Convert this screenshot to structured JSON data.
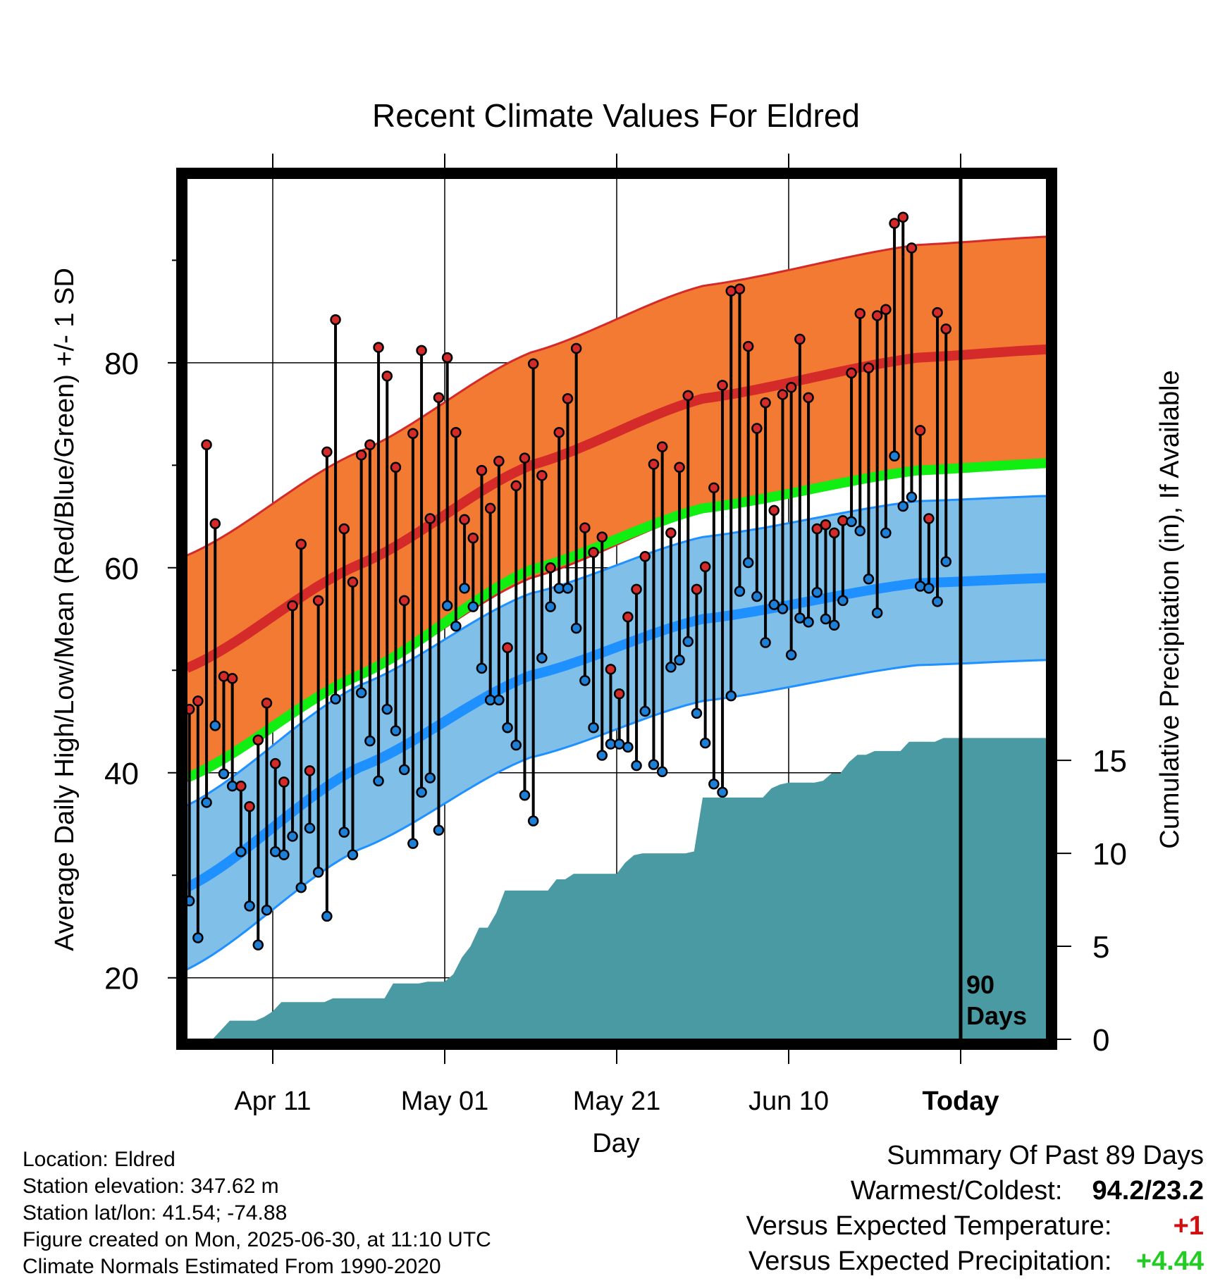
{
  "chart_data": {
    "type": "line",
    "title": "Recent Climate Values For Eldred",
    "xlabel": "Day",
    "ylabel_left": "Average Daily High/Low/Mean (Red/Blue/Green) +/- 1 SD",
    "ylabel_right": "Cumulative Precipitation (in), If Available",
    "x_tick_labels": [
      "Apr 11",
      "May 01",
      "May 21",
      "Jun 10",
      "Today"
    ],
    "x_tick_days": [
      10,
      30,
      50,
      70,
      90
    ],
    "xlim": [
      0,
      100
    ],
    "ylim_left": [
      14,
      98
    ],
    "y_ticks_left": [
      20,
      40,
      60,
      80
    ],
    "y_minor_left": [
      30,
      50,
      70,
      90
    ],
    "ylim_right": [
      0,
      46.3
    ],
    "y_ticks_right": [
      0,
      5,
      10,
      15
    ],
    "today_day": 90,
    "today_label": [
      "90",
      "Days"
    ],
    "normals": {
      "high_mean": [
        50.2,
        60.3,
        70.0,
        76.5,
        80.5,
        81.3
      ],
      "high_sd": 11.0,
      "low_mean": [
        28.8,
        40.5,
        49.5,
        55.0,
        58.5,
        59.0
      ],
      "low_sd": 8.0,
      "mean": [
        39.5,
        49.5,
        59.8,
        65.8,
        69.5,
        70.2
      ],
      "anchor_days": [
        0,
        20,
        40,
        60,
        85,
        100
      ]
    },
    "series": [
      {
        "name": "High",
        "values": [
          46.2,
          47.0,
          72.0,
          64.3,
          49.4,
          49.2,
          38.7,
          36.7,
          43.2,
          46.8,
          40.9,
          39.1,
          56.3,
          62.3,
          40.2,
          56.8,
          71.3,
          84.2,
          63.8,
          58.6,
          71.0,
          72.0,
          81.5,
          78.7,
          69.8,
          56.8,
          73.1,
          81.2,
          64.8,
          76.6,
          80.5,
          73.2,
          64.7,
          62.9,
          69.5,
          65.8,
          70.4,
          52.2,
          68.0,
          70.7,
          79.9,
          69.0,
          60.0,
          73.2,
          76.5,
          81.4,
          63.9,
          61.5,
          63.0,
          50.1,
          47.7,
          55.2,
          57.9,
          61.1,
          70.1,
          71.8,
          63.4,
          69.8,
          76.8,
          57.9,
          60.1,
          67.8,
          77.8,
          87.0,
          87.2,
          81.6,
          73.6,
          76.1,
          65.6,
          76.9,
          77.6,
          82.3,
          76.6,
          63.8,
          64.2,
          63.4,
          64.6,
          79.0,
          84.8,
          79.5,
          84.6,
          85.2,
          93.6,
          94.2,
          91.2,
          73.4,
          64.8,
          84.9,
          83.3
        ]
      },
      {
        "name": "Low",
        "values": [
          27.5,
          23.9,
          37.1,
          44.6,
          39.9,
          38.7,
          32.3,
          27.0,
          23.2,
          26.6,
          32.3,
          32.0,
          33.8,
          28.8,
          34.6,
          30.3,
          26.0,
          47.2,
          34.2,
          32.0,
          47.8,
          43.1,
          39.2,
          46.2,
          44.1,
          40.3,
          33.1,
          38.1,
          39.5,
          34.4,
          56.3,
          54.3,
          58.0,
          56.2,
          50.2,
          47.1,
          47.1,
          44.4,
          42.7,
          37.8,
          35.3,
          51.2,
          56.2,
          58.0,
          58.0,
          54.1,
          49.0,
          44.4,
          41.7,
          42.8,
          42.8,
          42.5,
          40.7,
          46.0,
          40.8,
          40.1,
          50.3,
          51.0,
          52.8,
          45.8,
          42.9,
          38.9,
          38.1,
          47.5,
          57.7,
          60.5,
          57.2,
          52.7,
          56.4,
          56.0,
          51.5,
          55.1,
          54.7,
          57.6,
          55.0,
          54.4,
          56.8,
          64.5,
          63.6,
          58.9,
          55.6,
          63.4,
          70.9,
          66.0,
          66.9,
          58.2,
          58.0,
          56.7,
          60.6
        ]
      },
      {
        "name": "Cumulative Precipitation",
        "values": [
          0.0,
          0.0,
          0.0,
          0.0,
          0.5,
          1.0,
          1.0,
          1.0,
          1.0,
          1.2,
          1.5,
          2.0,
          2.0,
          2.0,
          2.0,
          2.0,
          2.0,
          2.2,
          2.2,
          2.2,
          2.2,
          2.2,
          2.2,
          2.2,
          3.0,
          3.0,
          3.0,
          3.0,
          3.1,
          3.1,
          3.1,
          3.5,
          4.4,
          5.0,
          6.0,
          6.0,
          6.8,
          8.0,
          8.0,
          8.0,
          8.0,
          8.0,
          8.0,
          8.6,
          8.6,
          8.9,
          8.9,
          8.9,
          8.9,
          8.9,
          8.9,
          9.5,
          9.9,
          10.0,
          10.0,
          10.0,
          10.0,
          10.0,
          10.0,
          10.1,
          13.0,
          13.0,
          13.0,
          13.0,
          13.0,
          13.0,
          13.0,
          13.0,
          13.5,
          13.7,
          13.8,
          13.8,
          13.8,
          13.8,
          13.9,
          14.3,
          14.3,
          14.9,
          15.3,
          15.3,
          15.5,
          15.5,
          15.5,
          15.5,
          16.0,
          16.0,
          16.0,
          16.0,
          16.2,
          16.2,
          16.2,
          16.2,
          16.2,
          16.2,
          16.2,
          16.2,
          16.2,
          16.2,
          16.2,
          16.2,
          16.2
        ]
      }
    ]
  },
  "info": {
    "location": "Location: Eldred",
    "elevation": "Station elevation: 347.62 m",
    "latlon": "Station lat/lon: 41.54; -74.88",
    "created": "Figure created on Mon, 2025-06-30, at 11:10 UTC",
    "normals": "Climate Normals Estimated From 1990-2020"
  },
  "summary": {
    "heading": "Summary Of Past 89 Days",
    "warm_cold_label": "Warmest/Coldest:",
    "warm_cold_value": "94.2/23.2",
    "temp_label": "Versus Expected Temperature:",
    "temp_value": "+1",
    "precip_label": "Versus Expected Precipitation:",
    "precip_value": "+4.44"
  },
  "colors": {
    "high_band": "#f27a33",
    "high_line": "#d42a2a",
    "high_edge": "#d42a2a",
    "low_band": "#7fbfe8",
    "low_line": "#1e90ff",
    "low_edge": "#1e90ff",
    "mean_line": "#11ee11",
    "precip_fill": "#4a9aa3",
    "high_marker": "#d42a2a",
    "low_marker": "#1e7fd6",
    "frame": "#000000"
  }
}
